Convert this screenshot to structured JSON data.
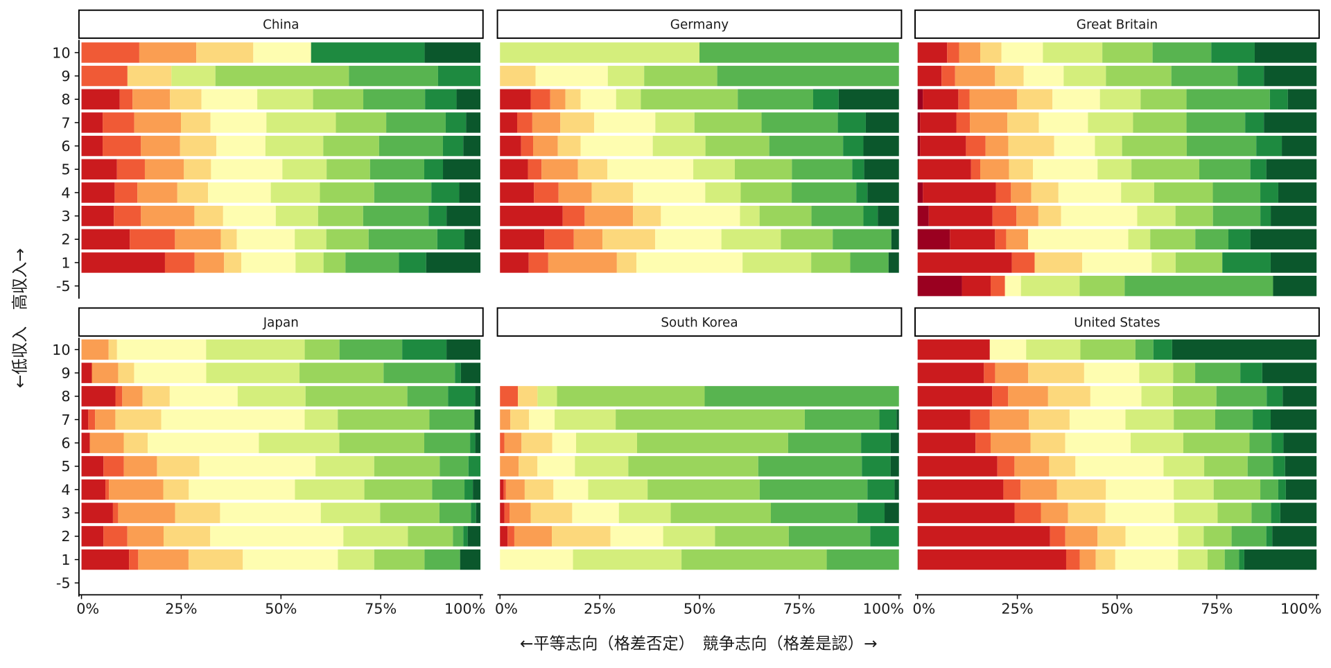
{
  "chart_data": {
    "type": "bar",
    "orientation": "horizontal",
    "stacked": "percent",
    "xlabel": "←平等志向（格差否定）　競争志向（格差是認）→",
    "ylabel": "←低収入　高収入→",
    "xlim": [
      0,
      100
    ],
    "x_ticks": [
      "0%",
      "25%",
      "50%",
      "75%",
      "100%"
    ],
    "categories": [
      "10",
      "9",
      "8",
      "7",
      "6",
      "5",
      "4",
      "3",
      "2",
      "1",
      "-5"
    ],
    "segment_levels": [
      "0",
      "1",
      "2",
      "3",
      "4",
      "5",
      "6",
      "7",
      "8",
      "9",
      "10"
    ],
    "palette": [
      "#9a0020",
      "#cb1b1e",
      "#f05a36",
      "#fa9e52",
      "#fcd87c",
      "#fefdb0",
      "#d4ee7c",
      "#9ad55c",
      "#58b450",
      "#1e8a40",
      "#0b572c"
    ],
    "grid": false,
    "legend": "none",
    "panels": [
      {
        "title": "China",
        "rows": [
          [
            0,
            0,
            14.5,
            14.3,
            14.3,
            14.5,
            0,
            0,
            0,
            28.5,
            14
          ],
          [
            0,
            0,
            11.5,
            0,
            11,
            0,
            11,
            33.4,
            22.3,
            10.6,
            0
          ],
          [
            0,
            9.6,
            3.2,
            9.4,
            7.9,
            14,
            14,
            12.6,
            15.5,
            7.9,
            6
          ],
          [
            0,
            5.3,
            7.9,
            11.7,
            7.4,
            14,
            17.4,
            12.6,
            14.9,
            5.1,
            3.6
          ],
          [
            0,
            5.3,
            9.6,
            9.8,
            9.1,
            12.3,
            14.5,
            14,
            16,
            5.1,
            4.3
          ],
          [
            0,
            8.9,
            7,
            9.8,
            6.8,
            17.9,
            11.1,
            10.9,
            13.6,
            4.7,
            9.4
          ],
          [
            0,
            8.3,
            5.7,
            10,
            7.7,
            15.7,
            12.3,
            13.6,
            14.3,
            7,
            5.3
          ],
          [
            0,
            8.1,
            6.8,
            13.4,
            7.2,
            13.2,
            10.6,
            11.3,
            16.4,
            4.5,
            8.5
          ],
          [
            0,
            12.1,
            11.3,
            11.5,
            4,
            14.5,
            7.9,
            10.6,
            17.2,
            6.8,
            4
          ],
          [
            0,
            20.9,
            7.4,
            7.4,
            4.3,
            13.6,
            7,
            5.5,
            13.4,
            6.8,
            13.6
          ],
          []
        ]
      },
      {
        "title": "Germany",
        "rows": [
          [
            0,
            0,
            0,
            0,
            0,
            0,
            50,
            0,
            50,
            0,
            0
          ],
          [
            0,
            0,
            0,
            0,
            8.9,
            18.1,
            9.1,
            18.3,
            45.5,
            0,
            0
          ],
          [
            0,
            7.7,
            4.9,
            3.8,
            3.8,
            8.9,
            6.2,
            24.3,
            18.9,
            6.4,
            15.1
          ],
          [
            0,
            4.3,
            3.8,
            7,
            8.5,
            15.3,
            9.8,
            16.8,
            19.1,
            7,
            8.3
          ],
          [
            0,
            5.3,
            3,
            6.2,
            5.7,
            18.1,
            13.2,
            16,
            18.5,
            5.1,
            8.9
          ],
          [
            0,
            7,
            3.4,
            9.1,
            7.4,
            21.5,
            10.4,
            14.3,
            15.1,
            3,
            8.7
          ],
          [
            0,
            8.5,
            6.2,
            8.3,
            10.4,
            18.1,
            8.9,
            12.8,
            16.2,
            2.8,
            7.9
          ],
          [
            0,
            15.7,
            5.5,
            12.1,
            7,
            19.8,
            4.9,
            13,
            13,
            3.6,
            5.3
          ],
          [
            0,
            11.1,
            7.4,
            7.2,
            13.2,
            16.6,
            14.9,
            13,
            14.7,
            0,
            1.9
          ],
          [
            0,
            7.2,
            4.9,
            17.2,
            4.9,
            26.6,
            17.2,
            9.8,
            9.6,
            0,
            2.6
          ],
          []
        ]
      },
      {
        "title": "Great Britain",
        "rows": [
          [
            0,
            7.4,
            3,
            5.3,
            5.3,
            10.4,
            14.9,
            12.6,
            14.7,
            10.9,
            15.5
          ],
          [
            0,
            6,
            3.4,
            10,
            7.2,
            10,
            10.6,
            16.4,
            16.6,
            6.6,
            13.2
          ],
          [
            1.3,
            8.9,
            2.8,
            11.9,
            8.9,
            11.9,
            10.2,
            11.5,
            20.9,
            4.5,
            7.2
          ],
          [
            0.6,
            9.1,
            3.4,
            9.4,
            7.9,
            12.3,
            11.3,
            13.4,
            14.7,
            4.7,
            13.2
          ],
          [
            0.6,
            11.5,
            4.9,
            5.7,
            11.5,
            10.2,
            6.8,
            16.2,
            17.4,
            6.4,
            8.7
          ],
          [
            0,
            13.4,
            2.3,
            7.2,
            6,
            16.2,
            8.5,
            17,
            12.8,
            4,
            12.6
          ],
          [
            1.3,
            18.3,
            3.8,
            5.1,
            6.8,
            15.7,
            8.3,
            14.7,
            11.9,
            4.5,
            9.6
          ],
          [
            2.8,
            16,
            6,
            5.5,
            5.7,
            19.1,
            9.6,
            9.4,
            11.9,
            2.6,
            11.5
          ],
          [
            8.1,
            11.3,
            2.8,
            5.5,
            0,
            25.1,
            5.5,
            11.3,
            8.3,
            5.5,
            16.6
          ],
          [
            0,
            23.6,
            5.7,
            0,
            11.9,
            17.4,
            6,
            11.7,
            0,
            12.1,
            11.5
          ],
          [
            11.1,
            7.2,
            3.6,
            0,
            0,
            4,
            14.7,
            11.3,
            37.2,
            0,
            10.9
          ]
        ]
      },
      {
        "title": "Japan",
        "rows": [
          [
            0,
            0,
            0,
            6.8,
            2.1,
            22.3,
            24.7,
            8.7,
            15.7,
            11.1,
            8.5
          ],
          [
            0,
            2.6,
            0,
            6.6,
            4,
            18.1,
            23.4,
            21.1,
            17.9,
            1.5,
            4.9
          ],
          [
            0,
            8.5,
            1.7,
            5.1,
            6.8,
            17,
            17,
            25.5,
            10.2,
            6.8,
            1.3
          ],
          [
            0,
            1.7,
            1.7,
            5.1,
            11.5,
            36,
            8.3,
            23,
            11.3,
            0,
            1.5
          ],
          [
            0,
            2.1,
            0,
            8.5,
            6,
            27.9,
            20.2,
            21.3,
            11.5,
            1.3,
            1.3
          ],
          [
            0,
            5.5,
            5.1,
            8.3,
            10.6,
            29.1,
            14.7,
            16.4,
            7.2,
            3,
            0
          ],
          [
            0,
            6,
            0.9,
            13.6,
            6.4,
            26.6,
            17.4,
            17,
            8.1,
            2.1,
            1.9
          ],
          [
            0,
            7.9,
            1.3,
            14.3,
            11.3,
            25.3,
            14.9,
            14.9,
            7.9,
            1.3,
            1.1
          ],
          [
            0,
            5.5,
            6,
            9.1,
            11.7,
            33.4,
            16.2,
            11.3,
            2.6,
            1.1,
            3.2
          ],
          [
            0,
            11.9,
            2.3,
            12.6,
            13.6,
            23.8,
            9.1,
            12.6,
            8.9,
            0,
            5.1
          ],
          []
        ]
      },
      {
        "title": "South Korea",
        "rows": [
          [],
          [],
          [
            0,
            0,
            4.5,
            0,
            4.9,
            0,
            4.9,
            37,
            48.7,
            0,
            0
          ],
          [
            0,
            0,
            0,
            2.6,
            4.7,
            6.4,
            15.3,
            47.4,
            18.7,
            4.3,
            0.6
          ],
          [
            0,
            0,
            1.1,
            4.3,
            7.7,
            6,
            15.3,
            37.9,
            18.3,
            7.4,
            2.1
          ],
          [
            0,
            0,
            0,
            4.7,
            4.7,
            9.4,
            13.4,
            32.6,
            26,
            7.2,
            2.1
          ],
          [
            0,
            0.9,
            0.6,
            4.7,
            7.2,
            8.7,
            14.9,
            28.1,
            27,
            6.8,
            1.1
          ],
          [
            0,
            1.1,
            1.3,
            5.3,
            10.4,
            11.7,
            13,
            25.1,
            21.7,
            6.8,
            3.6
          ],
          [
            0,
            1.9,
            1.7,
            9.4,
            14.7,
            13.2,
            13,
            18.5,
            20.4,
            7.2,
            0
          ],
          [
            0,
            0,
            0,
            0,
            0,
            18.3,
            27.2,
            36.4,
            18.1,
            0,
            0
          ],
          []
        ]
      },
      {
        "title": "United States",
        "rows": [
          [
            0,
            18.1,
            0,
            0,
            0,
            9.1,
            13.6,
            13.8,
            4.5,
            4.7,
            36.2
          ],
          [
            0,
            16.6,
            2.8,
            8.3,
            14,
            13.8,
            8.5,
            5.5,
            11.3,
            5.5,
            13.6
          ],
          [
            0,
            18.7,
            4,
            10,
            10.6,
            12.8,
            7.9,
            10.9,
            12.6,
            4,
            8.5
          ],
          [
            0,
            13.2,
            4.9,
            9.8,
            10.2,
            14,
            12.1,
            10.4,
            9.4,
            4.5,
            11.5
          ],
          [
            0,
            14.5,
            3.8,
            10,
            8.7,
            16.4,
            13.2,
            16.6,
            5.5,
            3,
            8.3
          ],
          [
            0,
            20,
            4.3,
            8.7,
            6.6,
            22.1,
            10.2,
            10.9,
            6.4,
            3,
            7.9
          ],
          [
            0,
            21.5,
            4.3,
            9.1,
            12.3,
            17,
            10,
            11.7,
            4.5,
            1.9,
            7.7
          ],
          [
            0,
            24.3,
            6.6,
            6.8,
            9.4,
            17.2,
            10.9,
            8.5,
            4.9,
            2.3,
            9.1
          ],
          [
            0,
            33.2,
            3.8,
            8.1,
            7,
            13.2,
            6.4,
            7,
            8.7,
            1.5,
            11.1
          ],
          [
            0,
            37.2,
            3.4,
            4,
            4.9,
            15.7,
            7.4,
            4.3,
            3.6,
            1.3,
            18.1
          ],
          []
        ]
      }
    ]
  }
}
